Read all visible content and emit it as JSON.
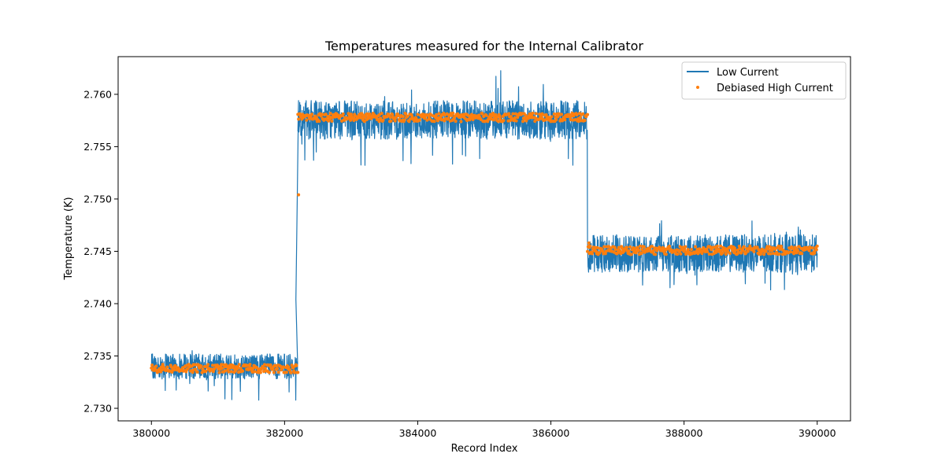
{
  "chart_data": {
    "type": "line",
    "title": "Temperatures measured for the Internal Calibrator",
    "xlabel": "Record Index",
    "ylabel": "Temperature (K)",
    "xlim": [
      379500,
      390500
    ],
    "ylim": [
      2.7288,
      2.7636
    ],
    "xticks": [
      380000,
      382000,
      384000,
      386000,
      388000,
      390000
    ],
    "yticks": [
      2.73,
      2.735,
      2.74,
      2.745,
      2.75,
      2.755,
      2.76
    ],
    "ytick_labels": [
      "2.730",
      "2.735",
      "2.740",
      "2.745",
      "2.750",
      "2.755",
      "2.760"
    ],
    "grid": false,
    "legend": {
      "placement": "top-right"
    },
    "series": [
      {
        "name": "Low Current",
        "style": "line",
        "color": "#1f77b4",
        "segments": [
          {
            "x_start": 380000,
            "x_end": 382200,
            "band_low": 2.7328,
            "band_high": 2.7352,
            "spike_min": 2.7302,
            "spike_max": 2.7368
          },
          {
            "x_start": 382200,
            "x_end": 386550,
            "band_low": 2.7557,
            "band_high": 2.7594,
            "spike_min": 2.753,
            "spike_max": 2.7627
          },
          {
            "x_start": 386550,
            "x_end": 390000,
            "band_low": 2.743,
            "band_high": 2.7466,
            "spike_min": 2.7413,
            "spike_max": 2.7481
          }
        ],
        "transition_points": [
          {
            "x": 382170,
            "y": 2.7404
          },
          {
            "x": 382210,
            "y": 2.7594
          }
        ]
      },
      {
        "name": "Debiased High Current",
        "style": "scatter",
        "color": "#ff7f0e",
        "segments": [
          {
            "x_start": 380000,
            "x_end": 382200,
            "mean": 2.7338,
            "spread": 0.0004
          },
          {
            "x_start": 382200,
            "x_end": 386550,
            "mean": 2.7578,
            "spread": 0.0004
          },
          {
            "x_start": 386550,
            "x_end": 390000,
            "mean": 2.7451,
            "spread": 0.0004
          }
        ],
        "outliers": [
          {
            "x": 382210,
            "y": 2.7504
          },
          {
            "x": 386570,
            "y": 2.7458
          },
          {
            "x": 386580,
            "y": 2.7448
          }
        ]
      }
    ]
  }
}
